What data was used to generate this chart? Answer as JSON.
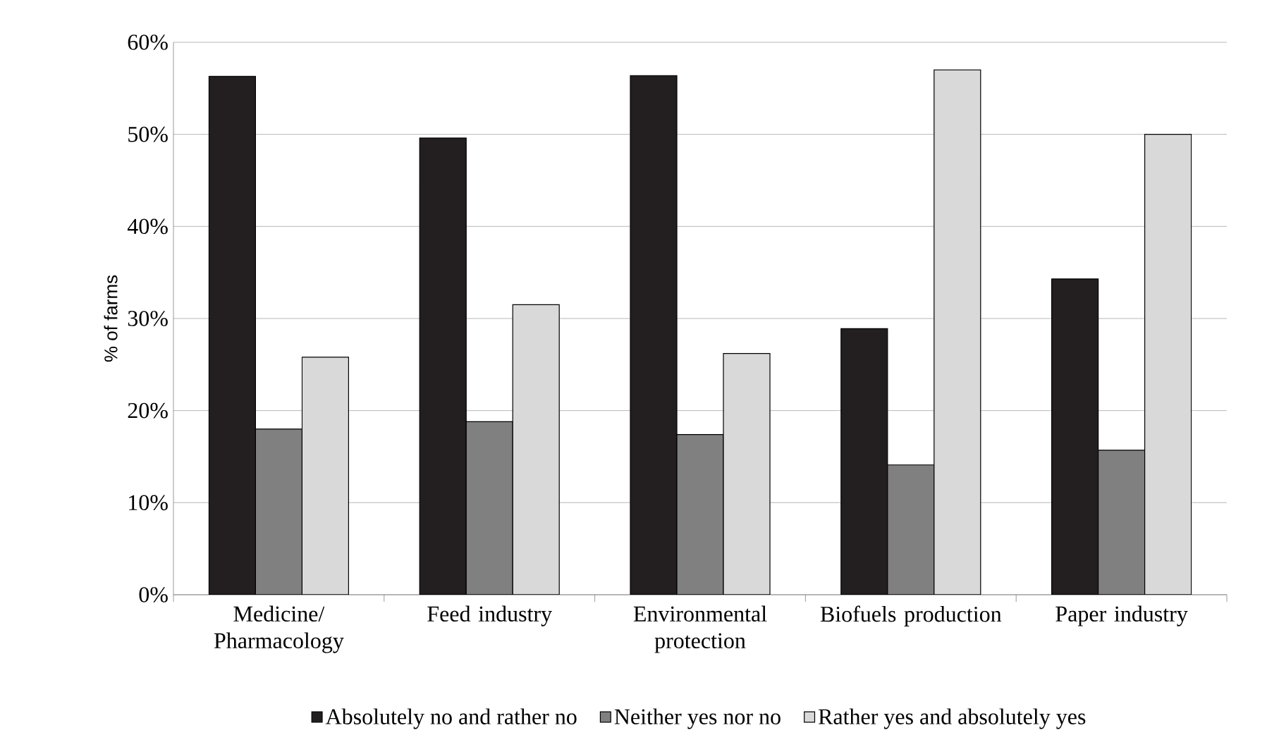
{
  "chart_data": {
    "type": "bar",
    "ylabel": "% of farms",
    "categories": [
      "Medicine/ Pharmacology",
      "Feed industry",
      "Environmental protection",
      "Biofuels production",
      "Paper industry"
    ],
    "series": [
      {
        "name": "Absolutely no and rather no",
        "color": "#231f20",
        "values": [
          56.3,
          49.6,
          56.4,
          28.9,
          34.3
        ]
      },
      {
        "name": "Neither yes nor no",
        "color": "#808080",
        "values": [
          18.0,
          18.8,
          17.4,
          14.1,
          15.7
        ]
      },
      {
        "name": "Rather yes and absolutely yes",
        "color": "#d9d9d9",
        "values": [
          25.8,
          31.5,
          26.2,
          57.0,
          50.0
        ]
      }
    ],
    "ylim": [
      0,
      60
    ],
    "yticks": [
      {
        "value": 0,
        "label": "0%"
      },
      {
        "value": 10,
        "label": "10%"
      },
      {
        "value": 20,
        "label": "20%"
      },
      {
        "value": 30,
        "label": "30%"
      },
      {
        "value": 40,
        "label": "40%"
      },
      {
        "value": 50,
        "label": "50%"
      },
      {
        "value": 60,
        "label": "60%"
      }
    ],
    "grid": "y",
    "legend": "bottom"
  }
}
